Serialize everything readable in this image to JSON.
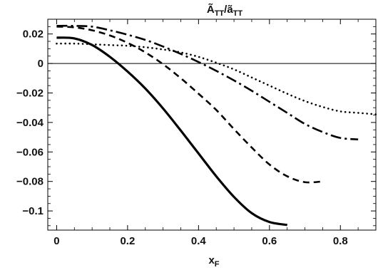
{
  "chart_data": {
    "type": "line",
    "title": "Ã_TT/ã_TT",
    "title_main": "Ã",
    "title_main_sub": "TT",
    "title_sep": "/ã",
    "title_sep_sub": "TT",
    "xlabel": "x_F",
    "xlabel_main": "x",
    "xlabel_sub": "F",
    "ylabel": "",
    "xlim": [
      -0.025,
      0.9
    ],
    "ylim": [
      -0.113,
      0.03
    ],
    "x_ticks": [
      0,
      0.2,
      0.4,
      0.6,
      0.8
    ],
    "x_tick_labels": [
      "0",
      "0.2",
      "0.4",
      "0.6",
      "0.8"
    ],
    "y_ticks": [
      0.02,
      0,
      -0.02,
      -0.04,
      -0.06,
      -0.08,
      -0.1
    ],
    "y_tick_labels": [
      "0.02",
      "0",
      "−0.02",
      "−0.04",
      "−0.06",
      "−0.08",
      "−0.1"
    ],
    "grid": false,
    "zero_line": true,
    "series": [
      {
        "style": "solid",
        "x": [
          0,
          0.05,
          0.1,
          0.15,
          0.2,
          0.25,
          0.3,
          0.35,
          0.4,
          0.45,
          0.5,
          0.55,
          0.6,
          0.65
        ],
        "values": [
          0.0175,
          0.017,
          0.0125,
          0.0045,
          -0.0055,
          -0.017,
          -0.0305,
          -0.0455,
          -0.061,
          -0.0765,
          -0.0905,
          -0.1015,
          -0.1075,
          -0.1095
        ]
      },
      {
        "style": "dashed",
        "x": [
          0,
          0.05,
          0.1,
          0.15,
          0.2,
          0.25,
          0.3,
          0.35,
          0.4,
          0.45,
          0.5,
          0.55,
          0.6,
          0.65,
          0.7,
          0.75
        ],
        "values": [
          0.025,
          0.0245,
          0.0225,
          0.019,
          0.014,
          0.0075,
          -0.0005,
          -0.01,
          -0.0205,
          -0.0315,
          -0.0445,
          -0.057,
          -0.0685,
          -0.0765,
          -0.0805,
          -0.08
        ]
      },
      {
        "style": "dash-dot",
        "x": [
          0,
          0.05,
          0.1,
          0.15,
          0.2,
          0.25,
          0.3,
          0.35,
          0.4,
          0.45,
          0.5,
          0.55,
          0.6,
          0.65,
          0.7,
          0.75,
          0.8,
          0.85
        ],
        "values": [
          0.0255,
          0.0255,
          0.025,
          0.0225,
          0.0195,
          0.016,
          0.0115,
          0.0065,
          0.001,
          -0.005,
          -0.0115,
          -0.0185,
          -0.026,
          -0.0335,
          -0.041,
          -0.0465,
          -0.0505,
          -0.0515
        ]
      },
      {
        "style": "dotted",
        "x": [
          0,
          0.05,
          0.1,
          0.15,
          0.2,
          0.25,
          0.3,
          0.35,
          0.4,
          0.45,
          0.5,
          0.55,
          0.6,
          0.65,
          0.7,
          0.75,
          0.8,
          0.85,
          0.9
        ],
        "values": [
          0.0135,
          0.0135,
          0.013,
          0.0125,
          0.012,
          0.011,
          0.0095,
          0.0075,
          0.0045,
          0.0005,
          -0.004,
          -0.0095,
          -0.015,
          -0.0205,
          -0.0255,
          -0.0295,
          -0.0325,
          -0.0335,
          -0.0345
        ]
      }
    ]
  }
}
